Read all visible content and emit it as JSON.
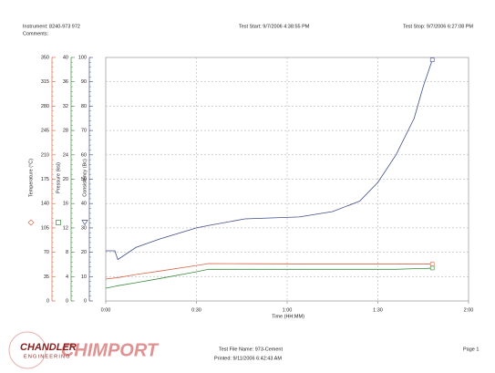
{
  "header": {
    "instrument": "Instrument: 8240-973 972",
    "comments": "Comments:",
    "test_start": "Test Start: 9/7/2006 4:38:55 PM",
    "test_stop": "Test Stop: 9/7/2006 6:27:08 PM"
  },
  "footer": {
    "file_name": "Test File Name: 973-Cement",
    "printed": "Printed: 9/11/2006 6:42:43 AM",
    "page": "Page 1",
    "logo": "CHANDLER",
    "logo_sub": "ENGINEERING",
    "watermark": "CHIMPORT"
  },
  "chart_data": {
    "type": "line",
    "x_label": "Time (HH:MM)",
    "xlim": [
      0,
      120
    ],
    "xticks": [
      {
        "value": 0,
        "label": "0:00"
      },
      {
        "value": 30,
        "label": "0:30"
      },
      {
        "value": 60,
        "label": "1:00"
      },
      {
        "value": 90,
        "label": "1:30"
      },
      {
        "value": 120,
        "label": "2:00"
      }
    ],
    "y_label": "Consistency (Bc)",
    "ylim": [
      0,
      100
    ],
    "yticks": [
      0,
      10,
      20,
      30,
      40,
      50,
      60,
      70,
      80,
      90,
      100
    ],
    "y2_label": "Pressure (ksi)",
    "y2lim": [
      0,
      40
    ],
    "y2ticks": [
      0,
      4,
      8,
      12,
      16,
      20,
      24,
      28,
      32,
      36,
      40
    ],
    "y3_label": "Temperature (°C)",
    "y3lim": [
      0,
      350
    ],
    "y3ticks": [
      0,
      35,
      70,
      105,
      140,
      175,
      210,
      245,
      280,
      315,
      350
    ],
    "grid": true,
    "x": [
      0,
      3,
      4,
      10,
      18,
      30,
      34,
      46,
      64,
      75,
      84,
      90,
      96,
      102,
      105,
      108
    ],
    "series": [
      {
        "name": "Consistency (Bc)",
        "axis": "y",
        "color": "#404c88",
        "values": [
          20.6,
          20.6,
          17,
          22,
          25.5,
          30,
          31,
          33.7,
          34.5,
          36.7,
          41,
          48.7,
          60,
          75,
          88,
          99
        ]
      },
      {
        "name": "Pressure (ksi)",
        "axis": "y2",
        "color": "#3d8a3d",
        "values": [
          2.1,
          2.4,
          2.5,
          3,
          3.7,
          4.8,
          5.2,
          5.2,
          5.2,
          5.2,
          5.2,
          5.2,
          5.2,
          5.3,
          5.3,
          5.4
        ]
      },
      {
        "name": "Temperature (°C)",
        "axis": "y3",
        "color": "#d8664a",
        "values": [
          31.5,
          33,
          33.5,
          38,
          43,
          51,
          53.7,
          53.5,
          53.2,
          53,
          53,
          53,
          53,
          53,
          53,
          53
        ]
      }
    ]
  }
}
